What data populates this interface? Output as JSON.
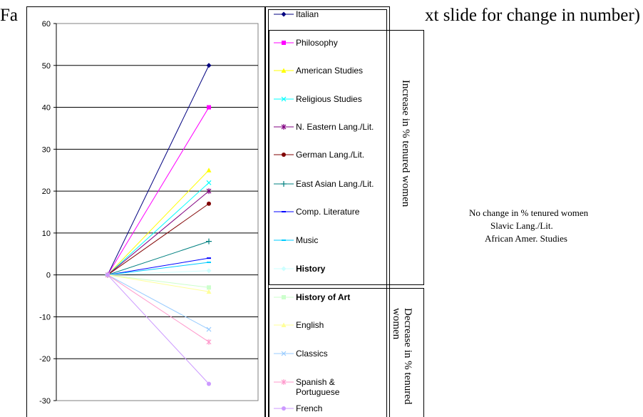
{
  "slide": {
    "title_left": "Fa",
    "title_right": "xt slide for change in number)"
  },
  "chart_data": {
    "type": "line",
    "x": [
      0,
      1
    ],
    "ylim": [
      -30,
      60
    ],
    "yticks": [
      -30,
      -20,
      -10,
      0,
      10,
      20,
      30,
      40,
      50,
      60
    ],
    "grid": true,
    "legend_placement": "right",
    "series": [
      {
        "name": "Italian",
        "values": [
          0,
          50
        ],
        "color": "#000080",
        "marker": "diamond",
        "bold": false
      },
      {
        "name": "Philosophy",
        "values": [
          0,
          40
        ],
        "color": "#ff00ff",
        "marker": "square",
        "bold": false
      },
      {
        "name": "American Studies",
        "values": [
          0,
          25
        ],
        "color": "#ffff00",
        "marker": "triangle",
        "bold": false
      },
      {
        "name": "Religious Studies",
        "values": [
          0,
          22
        ],
        "color": "#00ffff",
        "marker": "x",
        "bold": false
      },
      {
        "name": "N. Eastern Lang./Lit.",
        "values": [
          0,
          20
        ],
        "color": "#800080",
        "marker": "star",
        "bold": false
      },
      {
        "name": "German Lang./Lit.",
        "values": [
          0,
          17
        ],
        "color": "#800000",
        "marker": "circle",
        "bold": false
      },
      {
        "name": "East Asian Lang./Lit.",
        "values": [
          0,
          8
        ],
        "color": "#008080",
        "marker": "plus",
        "bold": false
      },
      {
        "name": "Comp. Literature",
        "values": [
          0,
          4
        ],
        "color": "#0000ff",
        "marker": "dash",
        "bold": false
      },
      {
        "name": "Music",
        "values": [
          0,
          3
        ],
        "color": "#00ccff",
        "marker": "dash",
        "bold": false
      },
      {
        "name": "History",
        "values": [
          0,
          1
        ],
        "color": "#ccffff",
        "marker": "diamond",
        "bold": true
      },
      {
        "name": "History of Art",
        "values": [
          0,
          -3
        ],
        "color": "#ccffcc",
        "marker": "square",
        "bold": true
      },
      {
        "name": "English",
        "values": [
          0,
          -4
        ],
        "color": "#ffff99",
        "marker": "triangle",
        "bold": false
      },
      {
        "name": "Classics",
        "values": [
          0,
          -13
        ],
        "color": "#99ccff",
        "marker": "x",
        "bold": false
      },
      {
        "name": "Spanish & Portuguese",
        "values": [
          0,
          -16
        ],
        "color": "#ff99cc",
        "marker": "star",
        "bold": false
      },
      {
        "name": "French",
        "values": [
          0,
          -26
        ],
        "color": "#cc99ff",
        "marker": "circle",
        "bold": false
      }
    ]
  },
  "labels": {
    "increase": "Increase in % tenured women",
    "decrease": "Decrease in % tenured women",
    "no_change_title": "No change in % tenured women",
    "no_change_items": [
      "Slavic Lang./Lit.",
      "African Amer. Studies"
    ]
  }
}
